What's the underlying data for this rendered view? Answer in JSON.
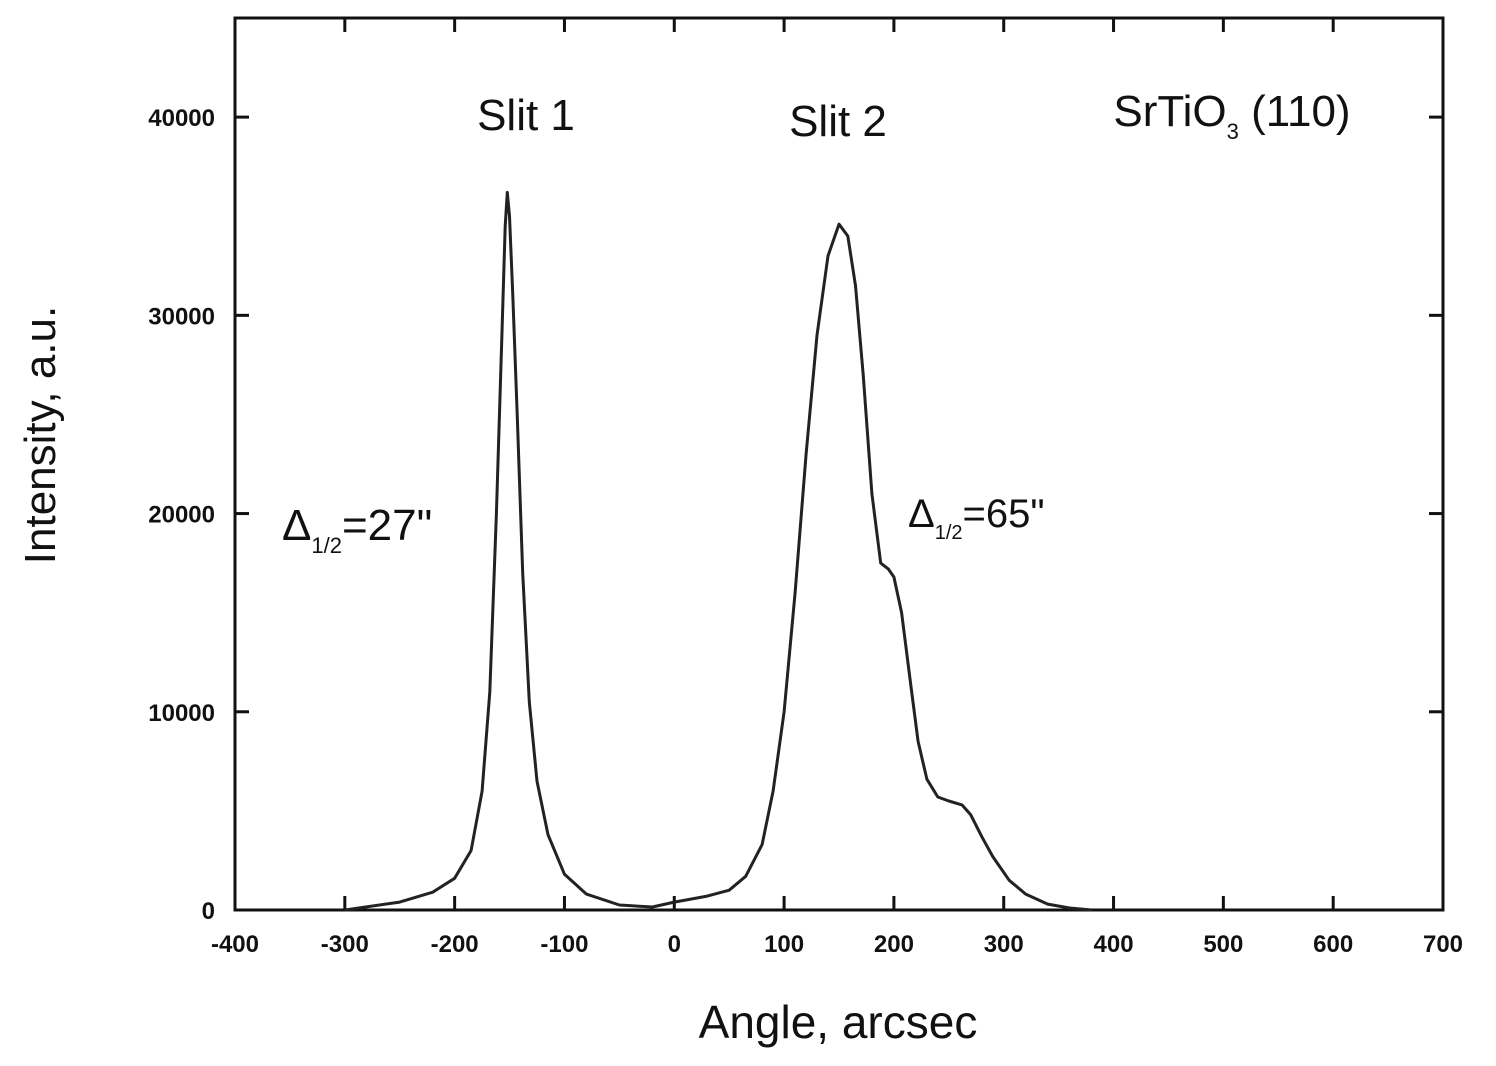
{
  "chart_data": {
    "type": "line",
    "x_label": "Angle, arcsec",
    "y_label": "Intensity, a.u.",
    "xlim": [
      -400,
      700
    ],
    "ylim": [
      0,
      45000
    ],
    "xticks": [
      -400,
      -300,
      -200,
      -100,
      0,
      100,
      200,
      300,
      400,
      500,
      600,
      700
    ],
    "yticks": [
      0,
      10000,
      20000,
      30000,
      40000
    ],
    "series": [
      {
        "color": "#222222",
        "x": [
          -300,
          -250,
          -220,
          -200,
          -185,
          -175,
          -168,
          -162,
          -157,
          -154,
          -152,
          -150,
          -147,
          -143,
          -138,
          -132,
          -125,
          -115,
          -100,
          -80,
          -50,
          -20,
          0,
          30,
          50,
          65,
          80,
          90,
          100,
          110,
          120,
          130,
          140,
          150,
          158,
          165,
          172,
          180,
          188,
          195,
          200,
          207,
          215,
          222,
          230,
          240,
          250,
          262,
          270,
          280,
          290,
          305,
          320,
          340,
          360,
          380
        ],
        "values": [
          0,
          400,
          900,
          1600,
          3000,
          6000,
          11000,
          20000,
          29000,
          34500,
          36200,
          35000,
          31000,
          25000,
          17000,
          10500,
          6500,
          3800,
          1800,
          800,
          250,
          150,
          400,
          700,
          1000,
          1700,
          3300,
          6000,
          10000,
          16000,
          23000,
          29000,
          33000,
          34600,
          34000,
          31500,
          27000,
          21000,
          17500,
          17200,
          16800,
          15000,
          11500,
          8500,
          6600,
          5700,
          5500,
          5300,
          4800,
          3700,
          2700,
          1500,
          800,
          300,
          100,
          0
        ]
      }
    ],
    "annotations": [
      {
        "parts": [
          "Slit 1"
        ]
      },
      {
        "parts": [
          "Slit 2"
        ]
      },
      {
        "parts": [
          "SrTiO",
          "3",
          " (110)"
        ]
      },
      {
        "parts": [
          "Δ",
          "1/2",
          "=27\""
        ]
      },
      {
        "parts": [
          "Δ",
          "1/2",
          "=65\""
        ]
      }
    ]
  }
}
